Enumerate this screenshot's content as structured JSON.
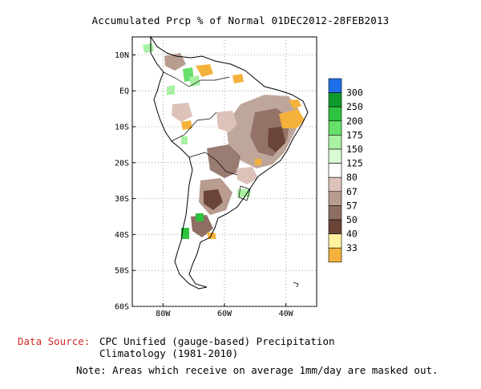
{
  "title": "Accumulated Prcp % of Normal 01DEC2012-28FEB2013",
  "data_source_label": "Data Source:",
  "data_source_text": [
    "CPC Unified (gauge-based) Precipitation",
    "Climatology (1981-2010)"
  ],
  "note": "Note: Areas which receive on average 1mm/day are masked out.",
  "chart_data": {
    "type": "heatmap",
    "title": "Accumulated Prcp % of Normal 01DEC2012-28FEB2013",
    "x_ticks": [
      "80W",
      "60W",
      "40W"
    ],
    "y_ticks": [
      "10N",
      "EQ",
      "10S",
      "20S",
      "30S",
      "40S",
      "50S",
      "60S"
    ],
    "xlim": [
      -90,
      -30
    ],
    "ylim": [
      -60,
      15
    ],
    "grid": true,
    "legend": {
      "placement": "right",
      "labels": [
        "300",
        "250",
        "200",
        "175",
        "150",
        "125",
        "80",
        "67",
        "57",
        "50",
        "40",
        "33"
      ],
      "colors": [
        "#1f6fe8",
        "#109a2e",
        "#2fc23e",
        "#66e06a",
        "#a8f0a2",
        "#d8fad4",
        "#ffffff",
        "#dcc2b8",
        "#b89c90",
        "#8e6e63",
        "#6b4438",
        "#fff3a0",
        "#f4b23c"
      ]
    },
    "regions": {
      "dry_core": "central and northeast Brazil, Paraguay, northern Argentina",
      "very_dry": "Bahia coast near 10S 38W",
      "wet_spots": "Colombia, Venezuela, Chile 40S"
    }
  }
}
